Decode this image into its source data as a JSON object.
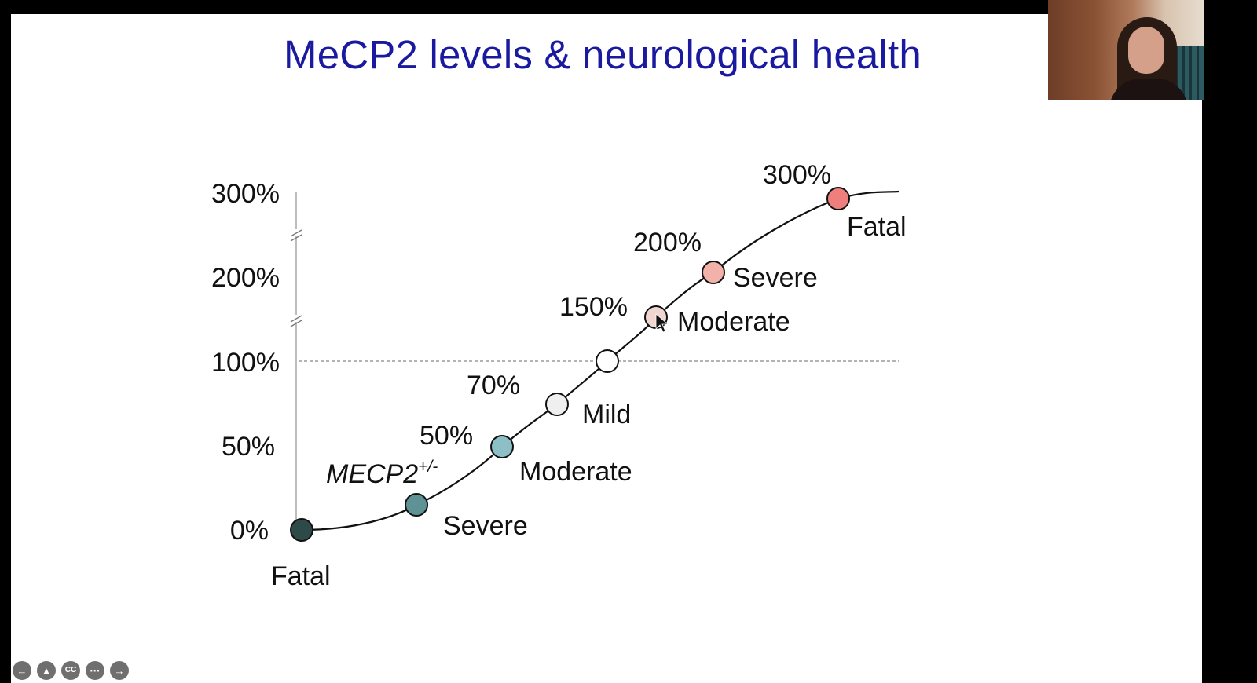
{
  "slide": {
    "title": "MeCP2 levels & neurological health"
  },
  "chart_data": {
    "type": "line",
    "title": "MeCP2 levels & neurological health",
    "y_ticks": [
      "300%",
      "200%",
      "100%",
      "50%",
      "0%"
    ],
    "reference_line": {
      "value": 100,
      "style": "dashed"
    },
    "y_axis_breaks": true,
    "points": [
      {
        "level": 0,
        "value_label": "",
        "severity": "Fatal",
        "color": "#2e4a48"
      },
      {
        "level": 25,
        "value_label": "MECP2",
        "superscript": "+/-",
        "severity": "Severe",
        "color": "#5e9294"
      },
      {
        "level": 50,
        "value_label": "50%",
        "severity": "Moderate",
        "color": "#8cc0c6"
      },
      {
        "level": 70,
        "value_label": "70%",
        "severity": "Mild",
        "color": "#efefef"
      },
      {
        "level": 100,
        "value_label": "",
        "severity": "",
        "color": "#ffffff"
      },
      {
        "level": 150,
        "value_label": "150%",
        "severity": "Moderate",
        "color": "#f0d6cf"
      },
      {
        "level": 200,
        "value_label": "200%",
        "severity": "Severe",
        "color": "#f2b2aa"
      },
      {
        "level": 300,
        "value_label": "300%",
        "severity": "Fatal",
        "color": "#ee7f7c"
      }
    ]
  },
  "controls": [
    {
      "name": "previous-slide",
      "glyph": "←"
    },
    {
      "name": "pointer-tool",
      "glyph": "▲"
    },
    {
      "name": "closed-captions",
      "glyph": "CC"
    },
    {
      "name": "more-options",
      "glyph": "···"
    },
    {
      "name": "next-slide",
      "glyph": "→"
    }
  ]
}
